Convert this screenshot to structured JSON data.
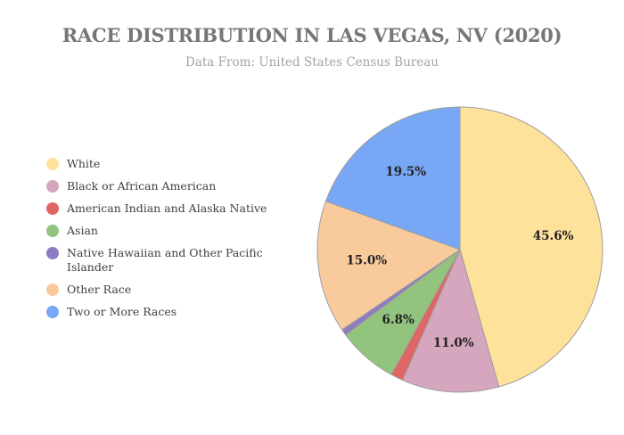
{
  "header": {
    "title": "RACE DISTRIBUTION IN LAS VEGAS, NV (2020)",
    "subtitle": "Data From: United States Census Bureau"
  },
  "chart_data": {
    "type": "pie",
    "title": "RACE DISTRIBUTION IN LAS VEGAS, NV (2020)",
    "subtitle": "Data From: United States Census Bureau",
    "categories": [
      "White",
      "Black or African American",
      "American Indian and Alaska Native",
      "Asian",
      "Native Hawaiian and Other Pacific Islander",
      "Other Race",
      "Two or More Races"
    ],
    "values": [
      45.6,
      11.0,
      1.4,
      6.8,
      0.7,
      15.0,
      19.5
    ],
    "labels": [
      "45.6%",
      "11.0%",
      "",
      "6.8%",
      "",
      "15.0%",
      "19.5%"
    ],
    "colors": [
      "#fee29b",
      "#d5a6bd",
      "#e06666",
      "#93c47d",
      "#8e7cc3",
      "#f9cb9c",
      "#78a7f5"
    ],
    "legend_position": "left",
    "start_angle": "12 o'clock",
    "direction": "clockwise"
  },
  "legend": {
    "items": [
      {
        "label": "White",
        "color": "#fee29b"
      },
      {
        "label": "Black or African American",
        "color": "#d5a6bd"
      },
      {
        "label": "American Indian and Alaska Native",
        "color": "#e06666"
      },
      {
        "label": "Asian",
        "color": "#93c47d"
      },
      {
        "label": "Native Hawaiian and Other Pacific Islander",
        "color": "#8e7cc3"
      },
      {
        "label": "Other Race",
        "color": "#f9cb9c"
      },
      {
        "label": "Two or More Races",
        "color": "#78a7f5"
      }
    ]
  }
}
